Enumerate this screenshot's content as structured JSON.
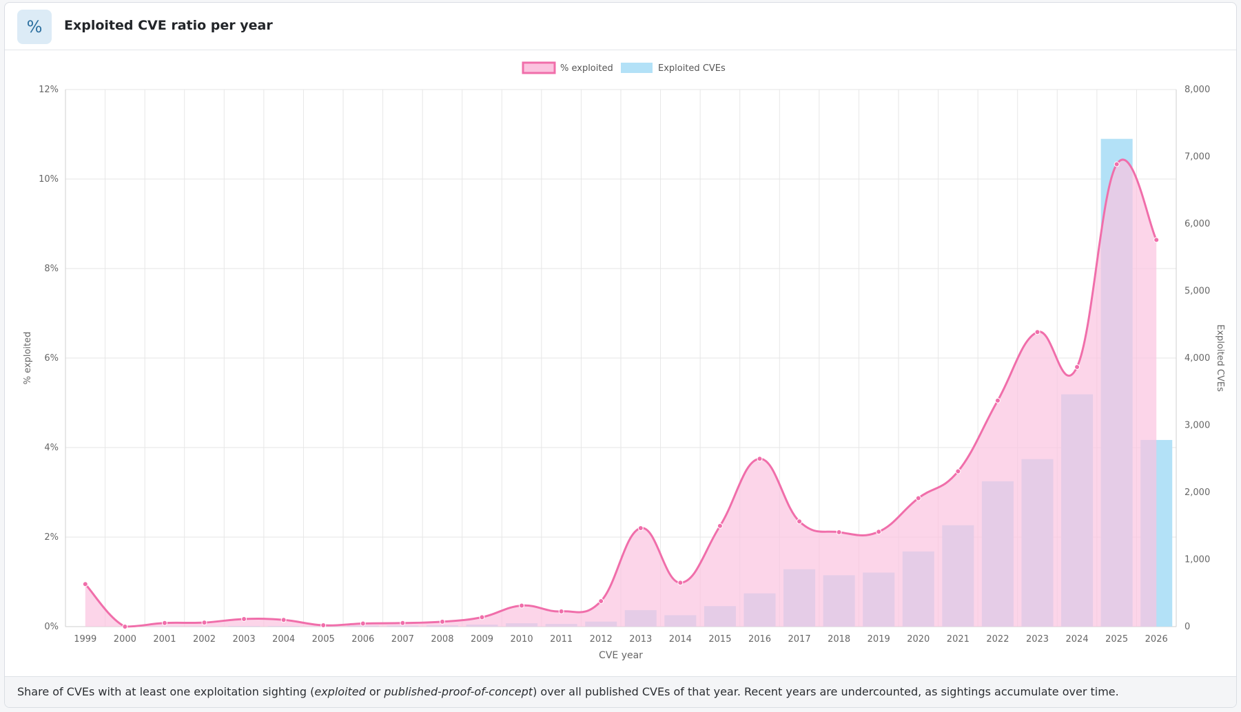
{
  "header": {
    "icon": "percent-icon",
    "icon_glyph": "%",
    "title": "Exploited CVE ratio per year"
  },
  "footer": {
    "text_1": "Share of CVEs with at least one exploitation sighting (",
    "em_1": "exploited",
    "text_2": " or ",
    "em_2": "published-proof-of-concept",
    "text_3": ") over all published CVEs of that year. Recent years are undercounted, as sightings accumulate over time."
  },
  "chart_data": {
    "type": "bar+line",
    "title": "",
    "xlabel": "CVE year",
    "categories": [
      "1999",
      "2000",
      "2001",
      "2002",
      "2003",
      "2004",
      "2005",
      "2006",
      "2007",
      "2008",
      "2009",
      "2010",
      "2011",
      "2012",
      "2013",
      "2014",
      "2015",
      "2016",
      "2017",
      "2018",
      "2019",
      "2020",
      "2021",
      "2022",
      "2023",
      "2024",
      "2025",
      "2026"
    ],
    "y_left": {
      "label": "% exploited",
      "range": [
        0,
        12
      ],
      "ticks": [
        0,
        2,
        4,
        6,
        8,
        10,
        12
      ],
      "tick_labels": [
        "0%",
        "2%",
        "4%",
        "6%",
        "8%",
        "10%",
        "12%"
      ]
    },
    "y_right": {
      "label": "Exploited CVEs",
      "range": [
        0,
        8000
      ],
      "ticks": [
        0,
        1000,
        2000,
        3000,
        4000,
        5000,
        6000,
        7000,
        8000
      ],
      "tick_labels": [
        "0",
        "1,000",
        "2,000",
        "3,000",
        "4,000",
        "5,000",
        "6,000",
        "7,000",
        "8,000"
      ]
    },
    "series": [
      {
        "name": "% exploited",
        "kind": "area-line",
        "axis": "left",
        "color": "#f06eaa",
        "fill": "#fbc3df",
        "values": [
          0.95,
          0.0,
          0.08,
          0.09,
          0.17,
          0.15,
          0.03,
          0.07,
          0.08,
          0.11,
          0.21,
          0.47,
          0.34,
          0.57,
          2.2,
          0.98,
          2.25,
          3.75,
          2.35,
          2.11,
          2.12,
          2.87,
          3.47,
          5.05,
          6.58,
          5.8,
          10.33,
          8.64
        ]
      },
      {
        "name": "Exploited CVEs",
        "kind": "bar",
        "axis": "right",
        "color": "#b3e1f7",
        "values": [
          0,
          0,
          5,
          5,
          10,
          10,
          5,
          15,
          15,
          20,
          30,
          50,
          40,
          75,
          245,
          170,
          305,
          495,
          855,
          765,
          805,
          1120,
          1510,
          2165,
          2495,
          3460,
          7265,
          2780
        ]
      }
    ],
    "legend": {
      "position": "top-center"
    },
    "grid": true
  }
}
